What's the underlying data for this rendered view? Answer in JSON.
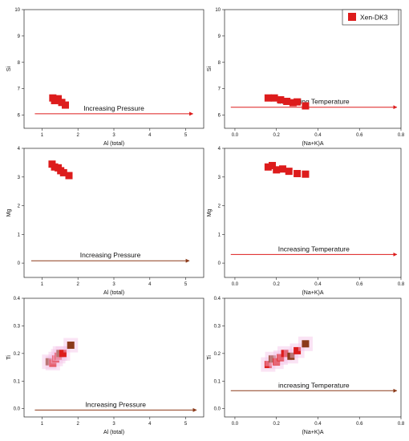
{
  "legend": {
    "label": "Xen-DK3",
    "color": "#dd1c1c"
  },
  "chart_data": [
    {
      "panel": "Si vs Al (total)",
      "type": "scatter",
      "xlabel": "Al (total)",
      "ylabel": "Si",
      "xlim": [
        0.5,
        5.5
      ],
      "ylim": [
        5.5,
        10
      ],
      "xticks": [
        1,
        2,
        3,
        4,
        5
      ],
      "yticks": [
        6,
        7,
        8,
        9,
        10
      ],
      "points": [
        [
          1.3,
          6.65
        ],
        [
          1.38,
          6.6
        ],
        [
          1.45,
          6.62
        ],
        [
          1.55,
          6.48
        ],
        [
          1.65,
          6.38
        ],
        [
          1.35,
          6.55
        ]
      ],
      "annotation": {
        "text": "Increasing Pressure",
        "arrow_from": [
          0.8,
          6.05
        ],
        "arrow_to": [
          5.2,
          6.05
        ]
      },
      "color": "#dd1c1c"
    },
    {
      "panel": "Si vs (Na+K)A",
      "type": "scatter",
      "xlabel": "(Na+K)A",
      "ylabel": "Si",
      "xlim": [
        -0.05,
        0.8
      ],
      "ylim": [
        5.5,
        10
      ],
      "xticks": [
        "0.0",
        "0.2",
        "0.4",
        "0.6",
        "0.8"
      ],
      "yticks": [
        6,
        7,
        8,
        9,
        10
      ],
      "points": [
        [
          0.16,
          6.65
        ],
        [
          0.19,
          6.65
        ],
        [
          0.22,
          6.58
        ],
        [
          0.25,
          6.52
        ],
        [
          0.28,
          6.47
        ],
        [
          0.3,
          6.5
        ],
        [
          0.34,
          6.35
        ]
      ],
      "annotation": {
        "text": "increasing Temperature",
        "arrow_from": [
          -0.02,
          6.3
        ],
        "arrow_to": [
          0.78,
          6.3
        ]
      },
      "color": "#dd1c1c"
    },
    {
      "panel": "Mg vs Al (total)",
      "type": "scatter",
      "xlabel": "Al (total)",
      "ylabel": "Mg",
      "xlim": [
        0.5,
        5.5
      ],
      "ylim": [
        -0.5,
        4
      ],
      "xticks": [
        1,
        2,
        3,
        4,
        5
      ],
      "yticks": [
        0,
        1,
        2,
        3,
        4
      ],
      "points": [
        [
          1.28,
          3.45
        ],
        [
          1.35,
          3.35
        ],
        [
          1.45,
          3.32
        ],
        [
          1.52,
          3.22
        ],
        [
          1.6,
          3.15
        ],
        [
          1.75,
          3.05
        ]
      ],
      "annotation": {
        "text": "Increasing Pressure",
        "arrow_from": [
          0.7,
          0.08
        ],
        "arrow_to": [
          5.1,
          0.08
        ]
      },
      "color": "#dd1c1c"
    },
    {
      "panel": "Mg vs (Na+K)A",
      "type": "scatter",
      "xlabel": "(Na+K)A",
      "ylabel": "Mg",
      "xlim": [
        -0.05,
        0.8
      ],
      "ylim": [
        -0.5,
        4
      ],
      "xticks": [
        "0.0",
        "0.2",
        "0.4",
        "0.6",
        "0.8"
      ],
      "yticks": [
        0,
        1,
        2,
        3,
        4
      ],
      "points": [
        [
          0.16,
          3.35
        ],
        [
          0.18,
          3.4
        ],
        [
          0.2,
          3.25
        ],
        [
          0.23,
          3.28
        ],
        [
          0.26,
          3.2
        ],
        [
          0.3,
          3.12
        ],
        [
          0.34,
          3.1
        ]
      ],
      "annotation": {
        "text": "Increasing Temperature",
        "arrow_from": [
          -0.02,
          0.3
        ],
        "arrow_to": [
          0.78,
          0.3
        ]
      },
      "color": "#dd1c1c"
    },
    {
      "panel": "Ti vs Al (total)",
      "type": "scatter",
      "xlabel": "Al (total)",
      "ylabel": "Ti",
      "xlim": [
        0.5,
        5.5
      ],
      "ylim": [
        -0.03,
        0.4
      ],
      "xticks": [
        1,
        2,
        3,
        4,
        5
      ],
      "yticks": [
        "0.0",
        "0.1",
        "0.2",
        "0.3",
        "0.4"
      ],
      "points": [
        {
          "x": 1.2,
          "y": 0.17,
          "c": "#8b3a1a"
        },
        {
          "x": 1.3,
          "y": 0.165,
          "c": "#dd1c1c"
        },
        {
          "x": 1.38,
          "y": 0.18,
          "c": "#dd1c1c"
        },
        {
          "x": 1.45,
          "y": 0.19,
          "c": "#dd1c1c"
        },
        {
          "x": 1.5,
          "y": 0.2,
          "c": "#8b3a1a"
        },
        {
          "x": 1.58,
          "y": 0.2,
          "c": "#dd1c1c"
        },
        {
          "x": 1.8,
          "y": 0.23,
          "c": "#8b3a1a"
        }
      ],
      "annotation": {
        "text": "Increasing Pressure",
        "arrow_from": [
          0.8,
          -0.005
        ],
        "arrow_to": [
          5.3,
          -0.005
        ]
      },
      "color": "#8b3a1a"
    },
    {
      "panel": "Ti vs (Na+K)A",
      "type": "scatter",
      "xlabel": "(Na+K)A",
      "ylabel": "Ti",
      "xlim": [
        -0.05,
        0.8
      ],
      "ylim": [
        -0.03,
        0.4
      ],
      "xticks": [
        "0.0",
        "0.2",
        "0.4",
        "0.6",
        "0.8"
      ],
      "yticks": [
        "0.0",
        "0.1",
        "0.2",
        "0.3",
        "0.4"
      ],
      "points": [
        {
          "x": 0.16,
          "y": 0.16,
          "c": "#dd1c1c"
        },
        {
          "x": 0.18,
          "y": 0.18,
          "c": "#8b3a1a"
        },
        {
          "x": 0.2,
          "y": 0.17,
          "c": "#dd1c1c"
        },
        {
          "x": 0.22,
          "y": 0.185,
          "c": "#dd1c1c"
        },
        {
          "x": 0.24,
          "y": 0.2,
          "c": "#dd1c1c"
        },
        {
          "x": 0.27,
          "y": 0.19,
          "c": "#8b3a1a"
        },
        {
          "x": 0.3,
          "y": 0.21,
          "c": "#dd1c1c"
        },
        {
          "x": 0.34,
          "y": 0.235,
          "c": "#8b3a1a"
        }
      ],
      "annotation": {
        "text": "increasing Temperature",
        "arrow_from": [
          -0.02,
          0.065
        ],
        "arrow_to": [
          0.78,
          0.065
        ]
      },
      "color": "#8b3a1a"
    }
  ]
}
